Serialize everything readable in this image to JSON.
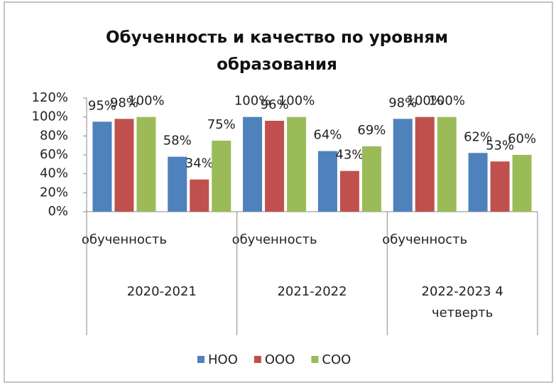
{
  "chart_data": {
    "type": "bar",
    "title": "Обученность и качество по уровням образования",
    "categories": [
      "обученность",
      null,
      "обученность",
      null,
      "обученность",
      null
    ],
    "groups": [
      "2020-2021",
      "2021-2022",
      "2022-2023 4 четверть"
    ],
    "series": [
      {
        "name": "НОО",
        "color": "#4f81bd",
        "values": [
          95,
          58,
          100,
          64,
          98,
          62
        ],
        "value_labels": [
          "95%",
          "58%",
          "100%",
          "64%",
          "98%",
          "62%"
        ]
      },
      {
        "name": "ООО",
        "color": "#c0504d",
        "values": [
          98,
          34,
          96,
          43,
          100,
          53
        ],
        "value_labels": [
          "98%",
          "34%",
          "96%",
          "43%",
          "100%",
          "53%"
        ]
      },
      {
        "name": "СОО",
        "color": "#9bbb59",
        "values": [
          100,
          75,
          100,
          69,
          100,
          60
        ],
        "value_labels": [
          "100%",
          "75%",
          "100%",
          "69%",
          "100%",
          "60%"
        ]
      }
    ],
    "ylim": [
      0,
      120
    ],
    "yticks": [
      {
        "value": 0,
        "label": "0%"
      },
      {
        "value": 20,
        "label": "20%"
      },
      {
        "value": 40,
        "label": "40%"
      },
      {
        "value": 60,
        "label": "60%"
      },
      {
        "value": 80,
        "label": "80%"
      },
      {
        "value": 100,
        "label": "100%"
      },
      {
        "value": 120,
        "label": "120%"
      }
    ],
    "legend": "bottom"
  }
}
